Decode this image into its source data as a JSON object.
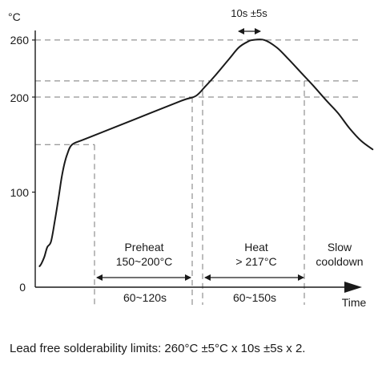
{
  "chart_data": {
    "type": "line",
    "unit_label": "°C",
    "xlabel": "Time",
    "ylabel": "",
    "ylim": [
      0,
      290
    ],
    "y_ticks": [
      {
        "value": 0,
        "label": "0"
      },
      {
        "value": 100,
        "label": "100"
      },
      {
        "value": 200,
        "label": "200"
      },
      {
        "value": 260,
        "label": "260"
      }
    ],
    "reference_levels": [
      150,
      200,
      217,
      260
    ],
    "series": [
      {
        "name": "",
        "x": [
          2,
          4,
          7,
          10,
          14,
          18,
          22,
          25,
          28,
          31,
          36,
          50,
          100,
          150,
          165,
          175,
          185,
          200,
          210,
          219,
          225,
          237,
          250,
          262,
          275,
          288,
          302,
          314,
          326,
          338,
          350
        ],
        "y": [
          22,
          25,
          32,
          42,
          48,
          70,
          95,
          115,
          130,
          140,
          150,
          156,
          176,
          196,
          201,
          211,
          222,
          240,
          252,
          258,
          260,
          260,
          252,
          240,
          226,
          212,
          196,
          183,
          167,
          154,
          145
        ]
      }
    ],
    "phases": [
      {
        "name": "Preheat",
        "detail": "150~200°C",
        "duration": "60~120s"
      },
      {
        "name": "Heat",
        "detail": "> 217°C",
        "duration": "60~150s"
      },
      {
        "name": "Slow",
        "detail": "cooldown"
      }
    ],
    "peak_time_label": "10s ±5s"
  },
  "caption": "Lead free solderability limits: 260°C ±5°C x 10s ±5s x 2."
}
